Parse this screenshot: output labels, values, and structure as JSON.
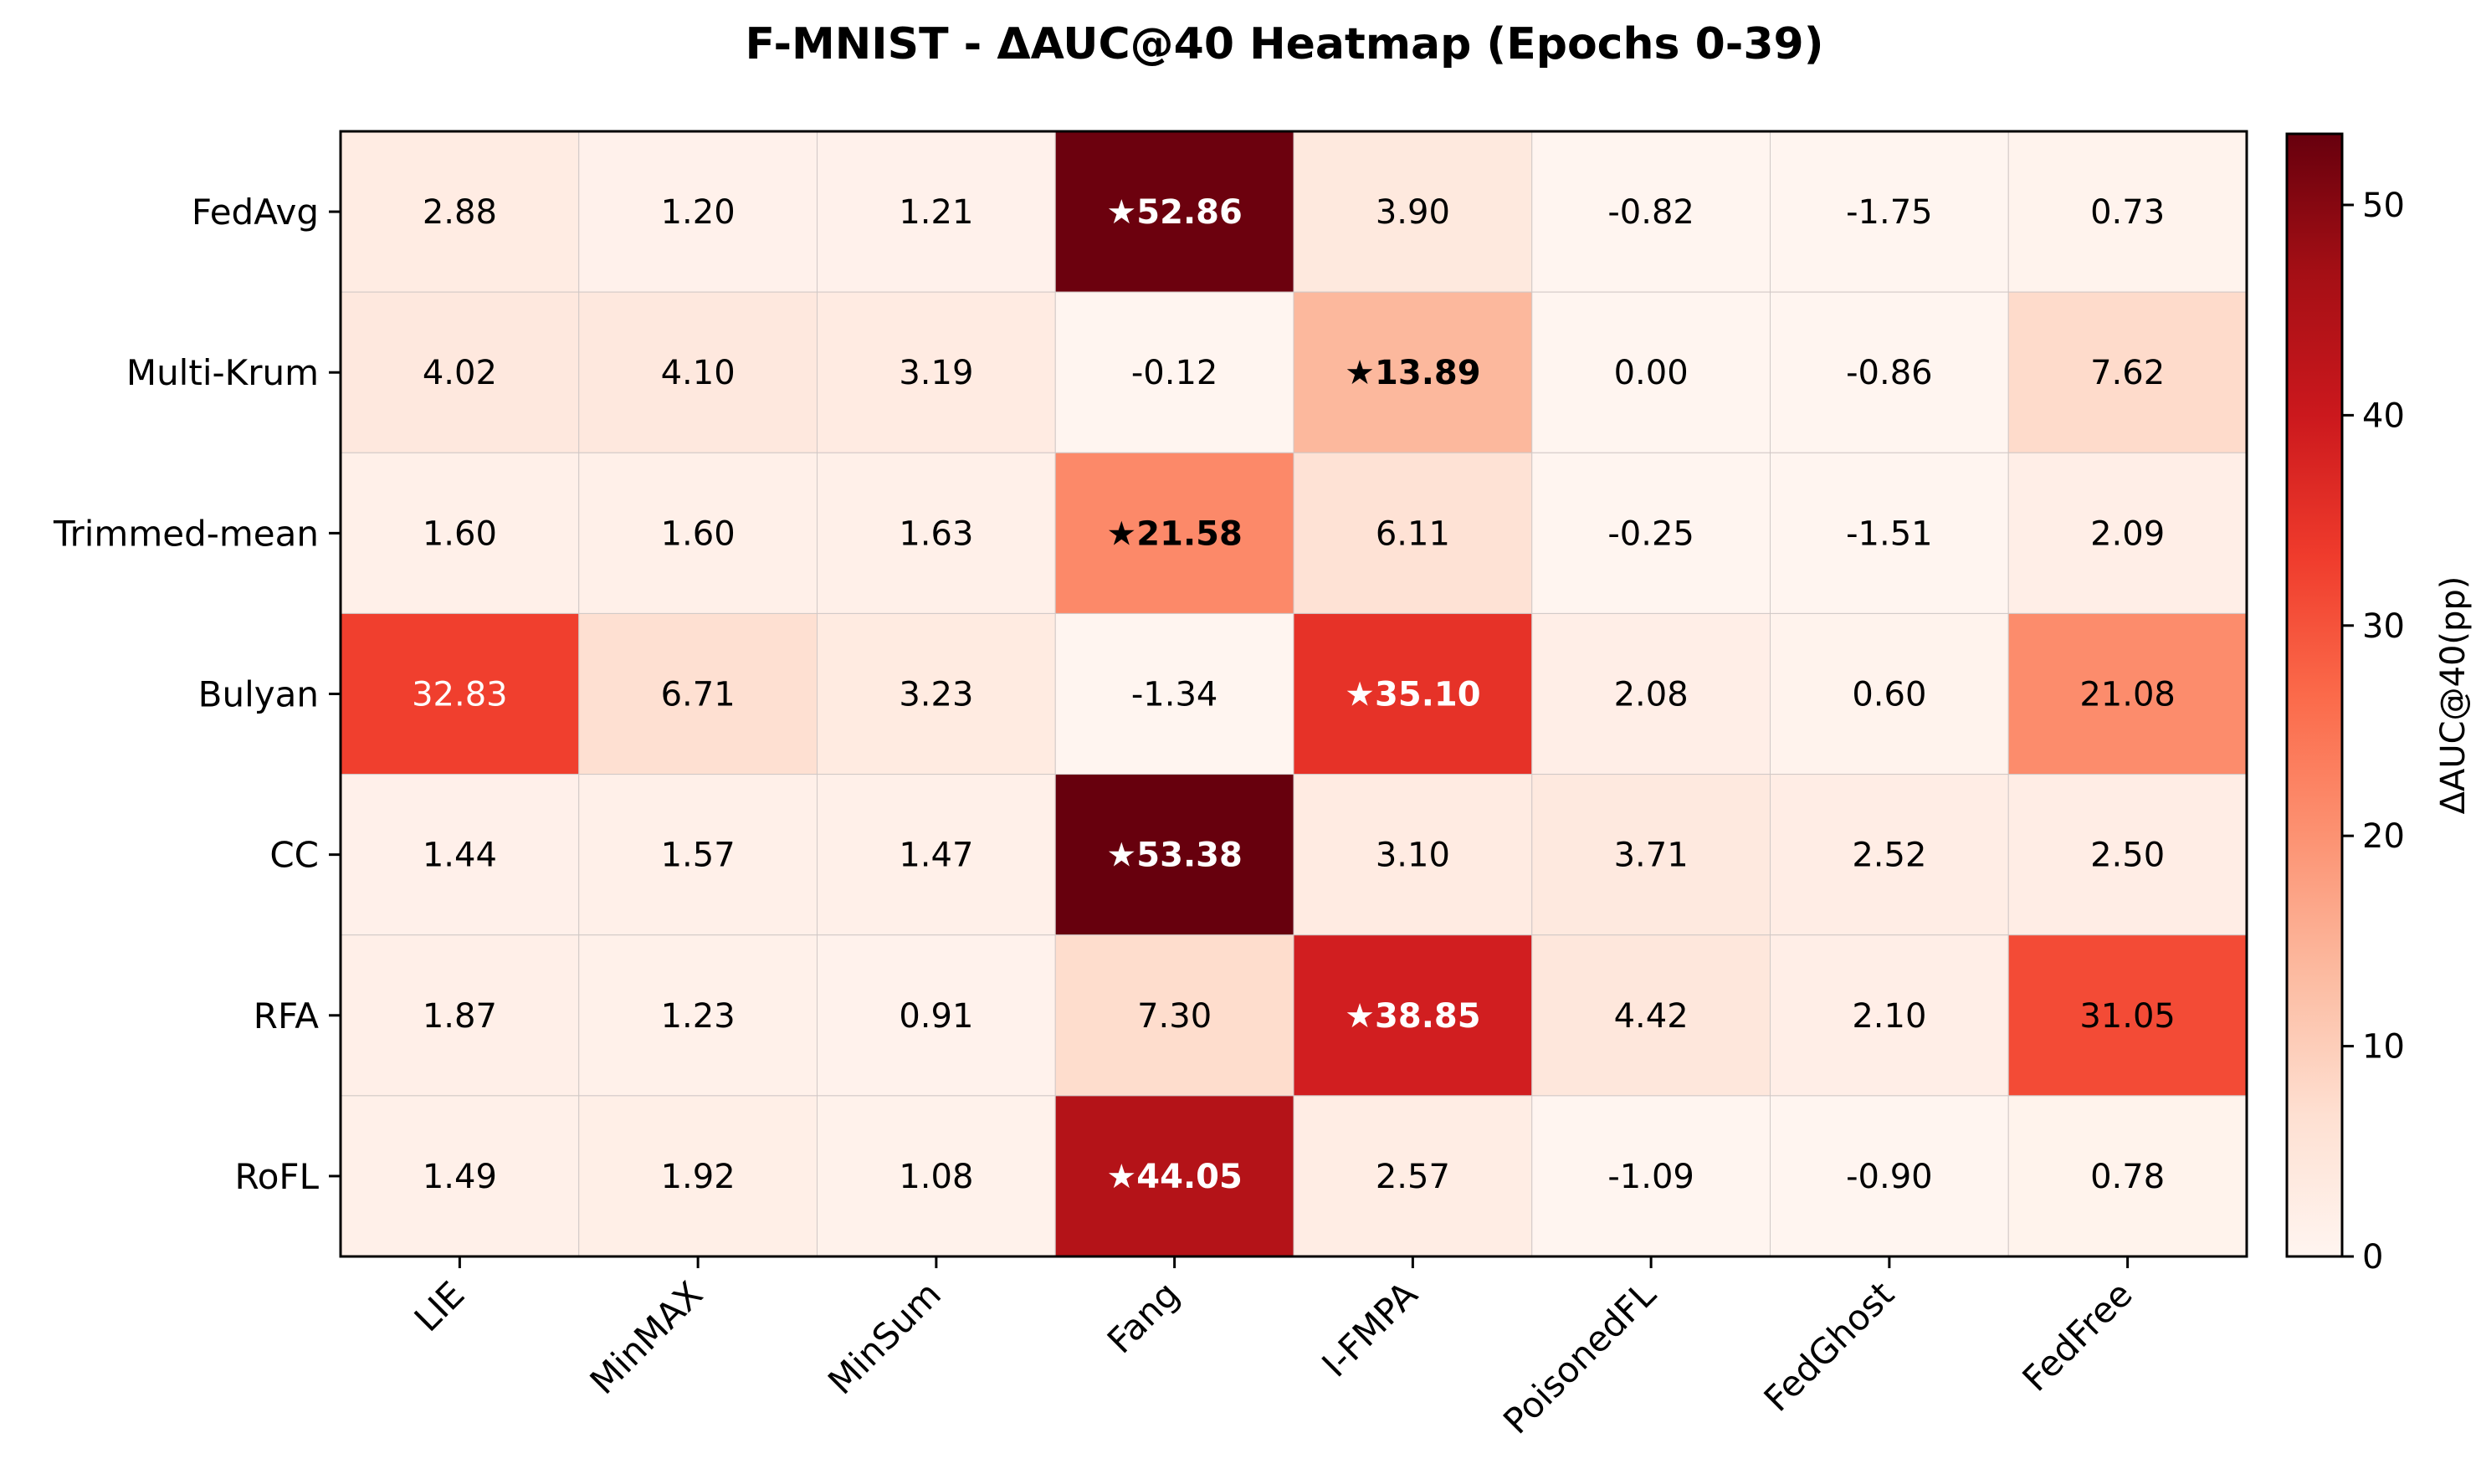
{
  "chart_data": {
    "type": "heatmap",
    "title": "F-MNIST - ΔAUC@40 Heatmap (Epochs 0-39)",
    "xlabel": "",
    "ylabel": "",
    "rows": [
      "FedAvg",
      "Multi-Krum",
      "Trimmed-mean",
      "Bulyan",
      "CC",
      "RFA",
      "RoFL"
    ],
    "columns": [
      "LIE",
      "MinMAX",
      "MinSum",
      "Fang",
      "I-FMPA",
      "PoisonedFL",
      "FedGhost",
      "FedFree"
    ],
    "values": [
      [
        2.88,
        1.2,
        1.21,
        52.86,
        3.9,
        -0.82,
        -1.75,
        0.73
      ],
      [
        4.02,
        4.1,
        3.19,
        -0.12,
        13.89,
        0.0,
        -0.86,
        7.62
      ],
      [
        1.6,
        1.6,
        1.63,
        21.58,
        6.11,
        -0.25,
        -1.51,
        2.09
      ],
      [
        32.83,
        6.71,
        3.23,
        -1.34,
        35.1,
        2.08,
        0.6,
        21.08
      ],
      [
        1.44,
        1.57,
        1.47,
        53.38,
        3.1,
        3.71,
        2.52,
        2.5
      ],
      [
        1.87,
        1.23,
        0.91,
        7.3,
        38.85,
        4.42,
        2.1,
        31.05
      ],
      [
        1.49,
        1.92,
        1.08,
        44.05,
        2.57,
        -1.09,
        -0.9,
        0.78
      ]
    ],
    "cell_labels": [
      [
        "2.88",
        "1.20",
        "1.21",
        "★52.86",
        "3.90",
        "-0.82",
        "-1.75",
        "0.73"
      ],
      [
        "4.02",
        "4.10",
        "3.19",
        "-0.12",
        "★13.89",
        "0.00",
        "-0.86",
        "7.62"
      ],
      [
        "1.60",
        "1.60",
        "1.63",
        "★21.58",
        "6.11",
        "-0.25",
        "-1.51",
        "2.09"
      ],
      [
        "32.83",
        "6.71",
        "3.23",
        "-1.34",
        "★35.10",
        "2.08",
        "0.60",
        "21.08"
      ],
      [
        "1.44",
        "1.57",
        "1.47",
        "★53.38",
        "3.10",
        "3.71",
        "2.52",
        "2.50"
      ],
      [
        "1.87",
        "1.23",
        "0.91",
        "7.30",
        "★38.85",
        "4.42",
        "2.10",
        "31.05"
      ],
      [
        "1.49",
        "1.92",
        "1.08",
        "★44.05",
        "2.57",
        "-1.09",
        "-0.90",
        "0.78"
      ]
    ],
    "starred": [
      [
        0,
        3
      ],
      [
        1,
        4
      ],
      [
        2,
        3
      ],
      [
        3,
        4
      ],
      [
        4,
        3
      ],
      [
        5,
        4
      ],
      [
        6,
        3
      ]
    ],
    "colormap": "Reds",
    "colormap_stops": [
      "#fff5f0",
      "#fee0d2",
      "#fcbba1",
      "#fc9272",
      "#fb6a4a",
      "#ef3b2c",
      "#cb181d",
      "#a50f15",
      "#67000d"
    ],
    "vmin": 0,
    "vmax": 53.38,
    "colorbar": {
      "label": "ΔAUC@40(pp)",
      "ticks": [
        0,
        10,
        20,
        30,
        40,
        50
      ],
      "tick_labels": [
        "0",
        "10",
        "20",
        "30",
        "40",
        "50"
      ]
    },
    "text_colors": {
      "dark": "#000000",
      "light": "#ffffff"
    },
    "grid_color": "#d0c8c6",
    "axis_color": "#000000"
  }
}
